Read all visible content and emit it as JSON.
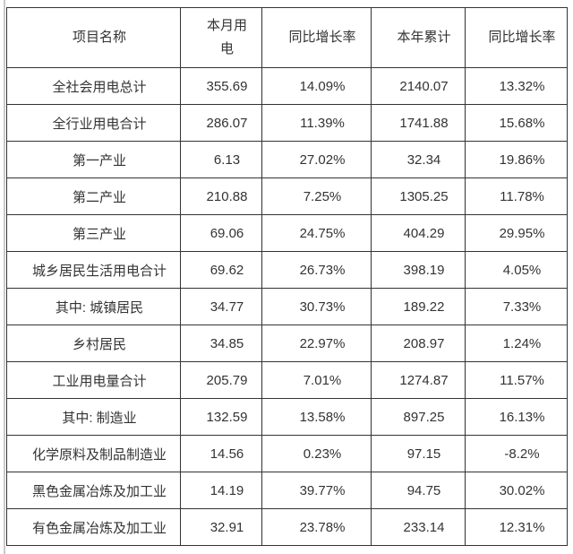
{
  "page": {
    "background_color": "#ffffff",
    "left_rule_color": "#c9c9c9"
  },
  "table": {
    "border_color": "#333333",
    "text_color": "#333333",
    "headers": [
      "项目名称",
      "本月用电",
      "同比增长率",
      "本年累计",
      "同比增长率"
    ],
    "rows": [
      [
        "全社会用电总计",
        "355.69",
        "14.09%",
        "2140.07",
        "13.32%"
      ],
      [
        "全行业用电合计",
        "286.07",
        "11.39%",
        "1741.88",
        "15.68%"
      ],
      [
        "第一产业",
        "6.13",
        "27.02%",
        "32.34",
        "19.86%"
      ],
      [
        "第二产业",
        "210.88",
        "7.25%",
        "1305.25",
        "11.78%"
      ],
      [
        "第三产业",
        "69.06",
        "24.75%",
        "404.29",
        "29.95%"
      ],
      [
        "城乡居民生活用电合计",
        "69.62",
        "26.73%",
        "398.19",
        "4.05%"
      ],
      [
        "其中: 城镇居民",
        "34.77",
        "30.73%",
        "189.22",
        "7.33%"
      ],
      [
        "乡村居民",
        "34.85",
        "22.97%",
        "208.97",
        "1.24%"
      ],
      [
        "工业用电量合计",
        "205.79",
        "7.01%",
        "1274.87",
        "11.57%"
      ],
      [
        "其中: 制造业",
        "132.59",
        "13.58%",
        "897.25",
        "16.13%"
      ],
      [
        "化学原料及制品制造业",
        "14.56",
        "0.23%",
        "97.15",
        "-8.2%"
      ],
      [
        "黑色金属冶炼及加工业",
        "14.19",
        "39.77%",
        "94.75",
        "30.02%"
      ],
      [
        "有色金属冶炼及加工业",
        "32.91",
        "23.78%",
        "233.14",
        "12.31%"
      ]
    ]
  },
  "chart_data": {
    "type": "table",
    "title": "",
    "columns": [
      "项目名称",
      "本月用电",
      "同比增长率",
      "本年累计",
      "同比增长率"
    ],
    "rows": [
      {
        "项目名称": "全社会用电总计",
        "本月用电": 355.69,
        "同比增长率_本月": "14.09%",
        "本年累计": 2140.07,
        "同比增长率_累计": "13.32%"
      },
      {
        "项目名称": "全行业用电合计",
        "本月用电": 286.07,
        "同比增长率_本月": "11.39%",
        "本年累计": 1741.88,
        "同比增长率_累计": "15.68%"
      },
      {
        "项目名称": "第一产业",
        "本月用电": 6.13,
        "同比增长率_本月": "27.02%",
        "本年累计": 32.34,
        "同比增长率_累计": "19.86%"
      },
      {
        "项目名称": "第二产业",
        "本月用电": 210.88,
        "同比增长率_本月": "7.25%",
        "本年累计": 1305.25,
        "同比增长率_累计": "11.78%"
      },
      {
        "项目名称": "第三产业",
        "本月用电": 69.06,
        "同比增长率_本月": "24.75%",
        "本年累计": 404.29,
        "同比增长率_累计": "29.95%"
      },
      {
        "项目名称": "城乡居民生活用电合计",
        "本月用电": 69.62,
        "同比增长率_本月": "26.73%",
        "本年累计": 398.19,
        "同比增长率_累计": "4.05%"
      },
      {
        "项目名称": "其中: 城镇居民",
        "本月用电": 34.77,
        "同比增长率_本月": "30.73%",
        "本年累计": 189.22,
        "同比增长率_累计": "7.33%"
      },
      {
        "项目名称": "乡村居民",
        "本月用电": 34.85,
        "同比增长率_本月": "22.97%",
        "本年累计": 208.97,
        "同比增长率_累计": "1.24%"
      },
      {
        "项目名称": "工业用电量合计",
        "本月用电": 205.79,
        "同比增长率_本月": "7.01%",
        "本年累计": 1274.87,
        "同比增长率_累计": "11.57%"
      },
      {
        "项目名称": "其中: 制造业",
        "本月用电": 132.59,
        "同比增长率_本月": "13.58%",
        "本年累计": 897.25,
        "同比增长率_累计": "16.13%"
      },
      {
        "项目名称": "化学原料及制品制造业",
        "本月用电": 14.56,
        "同比增长率_本月": "0.23%",
        "本年累计": 97.15,
        "同比增长率_累计": "-8.2%"
      },
      {
        "项目名称": "黑色金属冶炼及加工业",
        "本月用电": 14.19,
        "同比增长率_本月": "39.77%",
        "本年累计": 94.75,
        "同比增长率_累计": "30.02%"
      },
      {
        "项目名称": "有色金属冶炼及加工业",
        "本月用电": 32.91,
        "同比增长率_本月": "23.78%",
        "本年累计": 233.14,
        "同比增长率_累计": "12.31%"
      }
    ]
  }
}
